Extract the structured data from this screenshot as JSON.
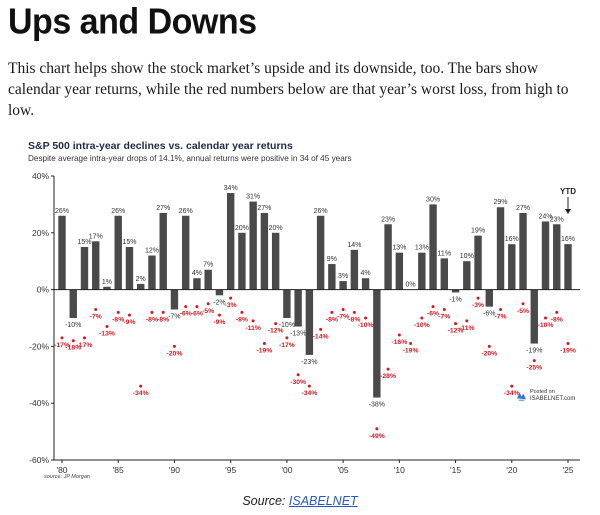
{
  "page": {
    "title": "Ups and Downs",
    "intro": "This chart helps show the stock market’s upside and its downside, too. The bars show calendar year returns, while the red numbers below are that year’s worst loss, from high to low.",
    "source_prefix": "Source: ",
    "source_link": "ISABELNET"
  },
  "chart_data": {
    "type": "bar",
    "title": "S&P 500 intra-year declines vs. calendar year returns",
    "subtitle": "Despite average intra-year drops of 14.1%, annual returns were positive in 34 of 45 years",
    "x": [
      1980,
      1981,
      1982,
      1983,
      1984,
      1985,
      1986,
      1987,
      1988,
      1989,
      1990,
      1991,
      1992,
      1993,
      1994,
      1995,
      1996,
      1997,
      1998,
      1999,
      2000,
      2001,
      2002,
      2003,
      2004,
      2005,
      2006,
      2007,
      2008,
      2009,
      2010,
      2011,
      2012,
      2013,
      2014,
      2015,
      2016,
      2017,
      2018,
      2019,
      2020,
      2021,
      2022,
      2023,
      2024,
      2025
    ],
    "x_tick_labels": [
      "'80",
      "'85",
      "'90",
      "'95",
      "'00",
      "'05",
      "'10",
      "'15",
      "'20",
      "'25"
    ],
    "x_tick_years": [
      1980,
      1985,
      1990,
      1995,
      2000,
      2005,
      2010,
      2015,
      2020,
      2025
    ],
    "annual_returns": [
      26,
      -10,
      15,
      17,
      1,
      26,
      15,
      2,
      12,
      27,
      -7,
      26,
      4,
      7,
      -2,
      34,
      20,
      31,
      27,
      20,
      -10,
      -13,
      -23,
      26,
      9,
      3,
      14,
      4,
      -38,
      23,
      13,
      0,
      13,
      30,
      11,
      -1,
      10,
      19,
      -6,
      29,
      16,
      27,
      -19,
      24,
      23,
      16
    ],
    "annual_return_labels": [
      "26%",
      "-10%",
      "15%",
      "17%",
      "1%",
      "26%",
      "15%",
      "2%",
      "12%",
      "27%",
      "-7%",
      "26%",
      "4%",
      "7%",
      "-2%",
      "34%",
      "20%",
      "31%",
      "27%",
      "20%",
      "-10%",
      "-13%",
      "-23%",
      "26%",
      "9%",
      "3%",
      "14%",
      "4%",
      "-38%",
      "23%",
      "13%",
      "0%",
      "13%",
      "30%",
      "11%",
      "-1%",
      "10%",
      "19%",
      "-6%",
      "29%",
      "16%",
      "27%",
      "-19%",
      "24%",
      "23%",
      "16%"
    ],
    "intra_year_declines": [
      -17,
      -18,
      -17,
      -7,
      -13,
      -8,
      -9,
      -34,
      -8,
      -8,
      -20,
      -6,
      -6,
      -5,
      -9,
      -3,
      -8,
      -11,
      -19,
      -12,
      -17,
      -30,
      -34,
      -14,
      -8,
      -7,
      -8,
      -10,
      -49,
      -28,
      -16,
      -19,
      -10,
      -6,
      -7,
      -12,
      -11,
      -3,
      -20,
      -7,
      -34,
      -5,
      -25,
      -10,
      -8,
      -19
    ],
    "intra_year_decline_labels": [
      "-17%",
      "-18%",
      "-17%",
      "-7%",
      "-13%",
      "-8%",
      "-9%",
      "-34%",
      "-8%",
      "-8%",
      "-20%",
      "-6%",
      "-6%",
      "-5%",
      "-9%",
      "-3%",
      "-8%",
      "-11%",
      "-19%",
      "-12%",
      "-17%",
      "-30%",
      "-34%",
      "-14%",
      "-8%",
      "-7%",
      "-8%",
      "-10%",
      "-49%",
      "-28%",
      "-16%",
      "-19%",
      "-10%",
      "-6%",
      "-7%",
      "-12%",
      "-11%",
      "-3%",
      "-20%",
      "-7%",
      "-34%",
      "-5%",
      "-25%",
      "-10%",
      "-8%",
      "-19%"
    ],
    "ylim": [
      -60,
      40
    ],
    "yticks": [
      40,
      20,
      0,
      -20,
      -40,
      -60
    ],
    "ytick_labels": [
      "40%",
      "20%",
      "0%",
      "-20%",
      "-40%",
      "-60%"
    ],
    "grid": false,
    "annotation": "YTD",
    "source_note": "source: JP Morgan",
    "posted_text": "Posted on",
    "posted_site": "ISABELNET.com",
    "colors": {
      "bar": "#4a4a4a",
      "decline": "#d6171f",
      "axis": "#222222",
      "label": "#333333"
    }
  }
}
